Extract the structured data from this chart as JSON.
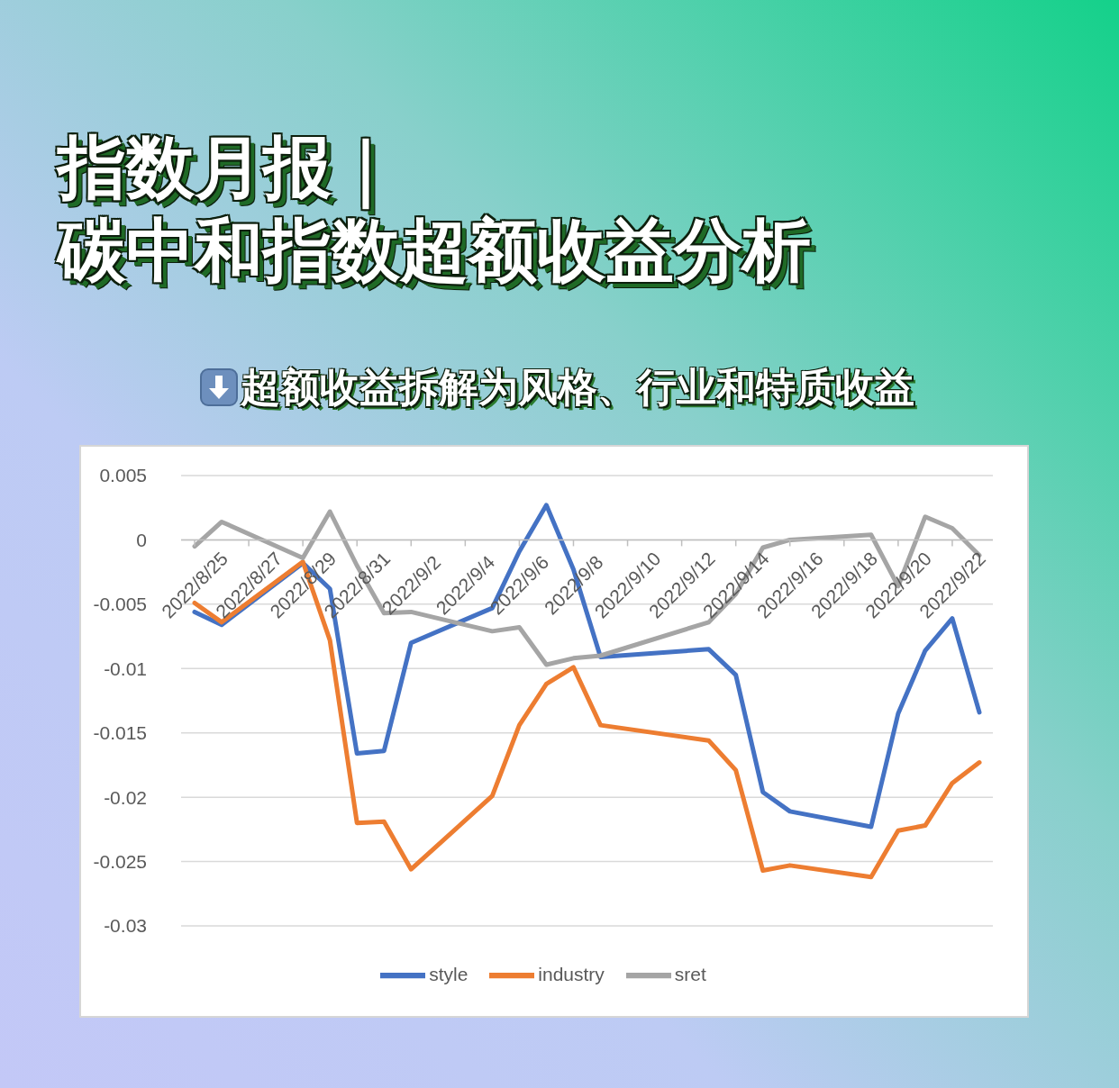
{
  "chart_data": {
    "type": "line",
    "title": "指数月报｜碳中和指数超额收益分析",
    "subtitle": "超额收益拆解为风格、行业和特质收益",
    "x": [
      "2022-08-25",
      "2022-08-26",
      "2022-08-29",
      "2022-08-30",
      "2022-08-31",
      "2022-09-01",
      "2022-09-02",
      "2022-09-05",
      "2022-09-06",
      "2022-09-07",
      "2022-09-08",
      "2022-09-09",
      "2022-09-13",
      "2022-09-14",
      "2022-09-15",
      "2022-09-16",
      "2022-09-19",
      "2022-09-20",
      "2022-09-21",
      "2022-09-22",
      "2022-09-23"
    ],
    "series": [
      {
        "name": "style",
        "color": "#4472c4",
        "values": [
          -0.0056,
          -0.0066,
          -0.0018,
          -0.0038,
          -0.0166,
          -0.0164,
          -0.008,
          -0.0053,
          -0.0009,
          0.0027,
          -0.0023,
          -0.0091,
          -0.0085,
          -0.0105,
          -0.0196,
          -0.0211,
          -0.0223,
          -0.0135,
          -0.0086,
          -0.0061,
          -0.0134
        ]
      },
      {
        "name": "industry",
        "color": "#ed7d31",
        "values": [
          -0.0049,
          -0.0064,
          -0.0017,
          -0.0078,
          -0.022,
          -0.0219,
          -0.0256,
          -0.0199,
          -0.0144,
          -0.0112,
          -0.0099,
          -0.0144,
          -0.0156,
          -0.0179,
          -0.0257,
          -0.0253,
          -0.0262,
          -0.0226,
          -0.0222,
          -0.0189,
          -0.0173
        ]
      },
      {
        "name": "sret",
        "color": "#a5a5a5",
        "values": [
          -0.0005,
          0.0014,
          -0.0014,
          0.0022,
          -0.002,
          -0.0057,
          -0.0056,
          -0.0071,
          -0.0068,
          -0.0097,
          -0.0092,
          -0.009,
          -0.0064,
          -0.0042,
          -0.0006,
          0,
          0.0004,
          -0.0036,
          0.0018,
          0.0009,
          -0.0012
        ]
      }
    ],
    "xlim": [
      "2022-08-24T12:00",
      "2022-09-23T12:00"
    ],
    "xticks": [
      {
        "value": "2022-08-25",
        "label": "2022/8/25"
      },
      {
        "value": "2022-08-27",
        "label": "2022/8/27"
      },
      {
        "value": "2022-08-29",
        "label": "2022/8/29"
      },
      {
        "value": "2022-08-31",
        "label": "2022/8/31"
      },
      {
        "value": "2022-09-02",
        "label": "2022/9/2"
      },
      {
        "value": "2022-09-04",
        "label": "2022/9/4"
      },
      {
        "value": "2022-09-06",
        "label": "2022/9/6"
      },
      {
        "value": "2022-09-08",
        "label": "2022/9/8"
      },
      {
        "value": "2022-09-10",
        "label": "2022/9/10"
      },
      {
        "value": "2022-09-12",
        "label": "2022/9/12"
      },
      {
        "value": "2022-09-14",
        "label": "2022/9/14"
      },
      {
        "value": "2022-09-16",
        "label": "2022/9/16"
      },
      {
        "value": "2022-09-18",
        "label": "2022/9/18"
      },
      {
        "value": "2022-09-20",
        "label": "2022/9/20"
      },
      {
        "value": "2022-09-22",
        "label": "2022/9/22"
      }
    ],
    "ylim": [
      -0.03,
      0.005
    ],
    "yticks": [
      -0.03,
      -0.025,
      -0.02,
      -0.015,
      -0.01,
      -0.005,
      0,
      0.005
    ],
    "grid": "y",
    "legend": "bottom",
    "marker": "none",
    "line_style": "solid"
  }
}
